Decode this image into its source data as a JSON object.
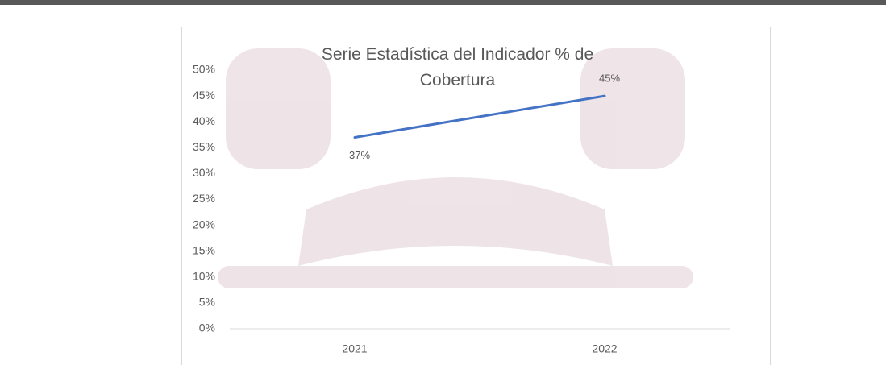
{
  "chart_data": {
    "type": "line",
    "title": "Serie Estadística del Indicador % de Cobertura",
    "categories": [
      "2021",
      "2022"
    ],
    "series": [
      {
        "color": "#4472c4",
        "values": [
          37,
          45
        ],
        "value_labels": [
          "37%",
          "45%"
        ]
      }
    ],
    "ylim": [
      0,
      50
    ],
    "yticks": [
      {
        "value": 0,
        "label": "0%"
      },
      {
        "value": 5,
        "label": "5%"
      },
      {
        "value": 10,
        "label": "10%"
      },
      {
        "value": 15,
        "label": "15%"
      },
      {
        "value": 20,
        "label": "20%"
      },
      {
        "value": 25,
        "label": "25%"
      },
      {
        "value": 30,
        "label": "30%"
      },
      {
        "value": 35,
        "label": "35%"
      },
      {
        "value": 40,
        "label": "40%"
      },
      {
        "value": 45,
        "label": "45%"
      },
      {
        "value": 50,
        "label": "50%"
      }
    ],
    "grid": false
  }
}
